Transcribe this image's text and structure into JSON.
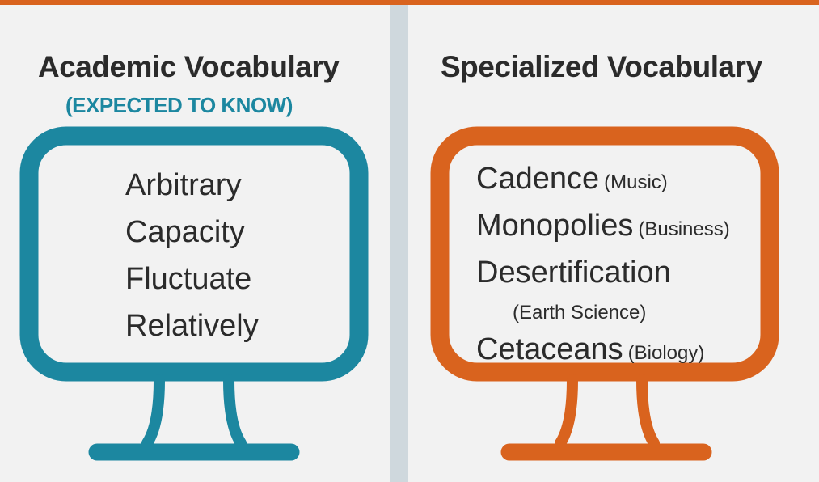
{
  "colors": {
    "accent_orange": "#d9631e",
    "accent_teal": "#1c87a0",
    "divider": "#cfd8dd",
    "background": "#f2f2f2",
    "text": "#2b2b2b"
  },
  "left_panel": {
    "title": "Academic Vocabulary",
    "subtitle": "(EXPECTED TO KNOW)",
    "icon": "monitor-icon",
    "words": [
      "Arbitrary",
      "Capacity",
      "Fluctuate",
      "Relatively"
    ]
  },
  "right_panel": {
    "title": "Specialized Vocabulary",
    "icon": "monitor-icon",
    "terms": [
      {
        "word": "Cadence",
        "field": "(Music)"
      },
      {
        "word": "Monopolies",
        "field": "(Business)"
      },
      {
        "word": "Desertification",
        "field": "(Earth Science)"
      },
      {
        "word": "Cetaceans",
        "field": "(Biology)"
      }
    ]
  }
}
